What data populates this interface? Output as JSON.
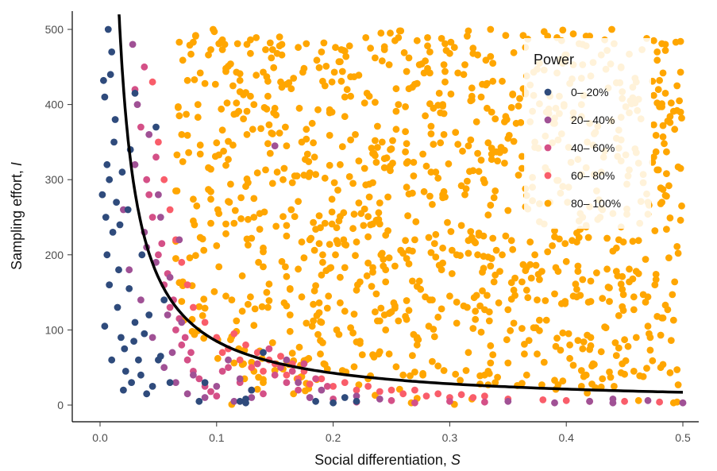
{
  "chart_data": {
    "type": "scatter",
    "xlabel": "Social differentiation, ",
    "xlabel_symbol": "S",
    "ylabel": "Sampling effort, ",
    "ylabel_symbol": "I",
    "xlim": [
      -0.025,
      0.51
    ],
    "ylim": [
      -25,
      525
    ],
    "x_ticks": [
      "0.0",
      "0.1",
      "0.2",
      "0.3",
      "0.4",
      "0.5"
    ],
    "y_ticks": [
      "0",
      "100",
      "200",
      "300",
      "400",
      "500"
    ],
    "grid": false,
    "legend": {
      "title": "Power",
      "position": "top-right",
      "entries": [
        "0– 20%",
        "20– 40%",
        "40– 60%",
        "60– 80%",
        "80– 100%"
      ]
    },
    "series": [
      {
        "name": "0– 20%",
        "color": "#2f4b7c",
        "points": [
          [
            0.003,
            432
          ],
          [
            0.005,
            250
          ],
          [
            0.008,
            300
          ],
          [
            0.006,
            200
          ],
          [
            0.01,
            60
          ],
          [
            0.015,
            130
          ],
          [
            0.02,
            20
          ],
          [
            0.004,
            410
          ],
          [
            0.012,
            350
          ],
          [
            0.007,
            500
          ],
          [
            0.018,
            90
          ],
          [
            0.022,
            45
          ],
          [
            0.03,
            110
          ],
          [
            0.009,
            440
          ],
          [
            0.014,
            270
          ],
          [
            0.025,
            155
          ],
          [
            0.006,
            320
          ],
          [
            0.011,
            230
          ],
          [
            0.016,
            180
          ],
          [
            0.021,
            75
          ],
          [
            0.027,
            30
          ],
          [
            0.033,
            60
          ],
          [
            0.04,
            15
          ],
          [
            0.048,
            370
          ],
          [
            0.055,
            140
          ],
          [
            0.06,
            30
          ],
          [
            0.004,
            105
          ],
          [
            0.013,
            380
          ],
          [
            0.019,
            310
          ],
          [
            0.024,
            260
          ],
          [
            0.03,
            415
          ],
          [
            0.036,
            200
          ],
          [
            0.042,
            120
          ],
          [
            0.05,
            60
          ],
          [
            0.008,
            160
          ],
          [
            0.017,
            240
          ],
          [
            0.029,
            85
          ],
          [
            0.035,
            40
          ],
          [
            0.045,
            25
          ],
          [
            0.002,
            280
          ],
          [
            0.01,
            470
          ],
          [
            0.026,
            340
          ],
          [
            0.038,
            95
          ],
          [
            0.052,
            65
          ],
          [
            0.085,
            5
          ],
          [
            0.09,
            30
          ],
          [
            0.12,
            5
          ],
          [
            0.125,
            8
          ],
          [
            0.13,
            20
          ],
          [
            0.14,
            70
          ],
          [
            0.185,
            5
          ],
          [
            0.2,
            3
          ],
          [
            0.21,
            10
          ],
          [
            0.22,
            5
          ],
          [
            0.125,
            3
          ]
        ]
      },
      {
        "name": "20– 40%",
        "color": "#a05195",
        "points": [
          [
            0.02,
            260
          ],
          [
            0.025,
            180
          ],
          [
            0.03,
            320
          ],
          [
            0.035,
            140
          ],
          [
            0.04,
            210
          ],
          [
            0.045,
            90
          ],
          [
            0.05,
            280
          ],
          [
            0.055,
            50
          ],
          [
            0.06,
            170
          ],
          [
            0.065,
            30
          ],
          [
            0.07,
            110
          ],
          [
            0.075,
            15
          ],
          [
            0.028,
            480
          ],
          [
            0.032,
            400
          ],
          [
            0.038,
            230
          ],
          [
            0.042,
            360
          ],
          [
            0.048,
            190
          ],
          [
            0.052,
            250
          ],
          [
            0.058,
            120
          ],
          [
            0.062,
            70
          ],
          [
            0.068,
            220
          ],
          [
            0.08,
            40
          ],
          [
            0.09,
            10
          ],
          [
            0.1,
            25
          ],
          [
            0.11,
            60
          ],
          [
            0.115,
            5
          ],
          [
            0.12,
            35
          ],
          [
            0.13,
            10
          ],
          [
            0.15,
            345
          ],
          [
            0.16,
            60
          ],
          [
            0.17,
            30
          ],
          [
            0.18,
            10
          ],
          [
            0.19,
            20
          ],
          [
            0.22,
            12
          ],
          [
            0.24,
            8
          ],
          [
            0.35,
            5
          ],
          [
            0.39,
            3
          ],
          [
            0.42,
            5
          ],
          [
            0.44,
            3
          ],
          [
            0.47,
            6
          ],
          [
            0.5,
            3
          ],
          [
            0.44,
            8
          ]
        ]
      },
      {
        "name": "40– 60%",
        "color": "#d45087",
        "points": [
          [
            0.03,
            420
          ],
          [
            0.035,
            370
          ],
          [
            0.04,
            300
          ],
          [
            0.045,
            250
          ],
          [
            0.05,
            200
          ],
          [
            0.055,
            160
          ],
          [
            0.06,
            130
          ],
          [
            0.065,
            100
          ],
          [
            0.07,
            80
          ],
          [
            0.075,
            60
          ],
          [
            0.08,
            45
          ],
          [
            0.085,
            35
          ],
          [
            0.09,
            25
          ],
          [
            0.095,
            18
          ],
          [
            0.1,
            12
          ],
          [
            0.11,
            50
          ],
          [
            0.12,
            30
          ],
          [
            0.13,
            20
          ],
          [
            0.14,
            15
          ],
          [
            0.15,
            40
          ],
          [
            0.16,
            30
          ],
          [
            0.17,
            20
          ],
          [
            0.18,
            10
          ],
          [
            0.2,
            8
          ],
          [
            0.22,
            4
          ],
          [
            0.25,
            6
          ],
          [
            0.27,
            3
          ],
          [
            0.3,
            5
          ],
          [
            0.33,
            4
          ],
          [
            0.038,
            450
          ],
          [
            0.042,
            280
          ],
          [
            0.048,
            330
          ],
          [
            0.053,
            215
          ],
          [
            0.058,
            175
          ],
          [
            0.063,
            140
          ],
          [
            0.068,
            115
          ],
          [
            0.073,
            90
          ],
          [
            0.078,
            70
          ],
          [
            0.105,
            45
          ],
          [
            0.135,
            55
          ],
          [
            0.145,
            75
          ],
          [
            0.155,
            50
          ],
          [
            0.165,
            45
          ],
          [
            0.175,
            55
          ],
          [
            0.185,
            35
          ],
          [
            0.195,
            25
          ]
        ]
      },
      {
        "name": "60– 80%",
        "color": "#f95d6a",
        "points": [
          [
            0.045,
            430
          ],
          [
            0.05,
            350
          ],
          [
            0.055,
            300
          ],
          [
            0.06,
            260
          ],
          [
            0.065,
            220
          ],
          [
            0.07,
            190
          ],
          [
            0.075,
            160
          ],
          [
            0.08,
            130
          ],
          [
            0.09,
            110
          ],
          [
            0.1,
            90
          ],
          [
            0.11,
            75
          ],
          [
            0.12,
            60
          ],
          [
            0.13,
            50
          ],
          [
            0.14,
            45
          ],
          [
            0.15,
            55
          ],
          [
            0.16,
            40
          ],
          [
            0.17,
            35
          ],
          [
            0.18,
            28
          ],
          [
            0.2,
            25
          ],
          [
            0.22,
            20
          ],
          [
            0.24,
            18
          ],
          [
            0.26,
            15
          ],
          [
            0.28,
            12
          ],
          [
            0.3,
            10
          ],
          [
            0.32,
            10
          ],
          [
            0.35,
            8
          ],
          [
            0.38,
            7
          ],
          [
            0.4,
            6
          ],
          [
            0.42,
            5
          ],
          [
            0.45,
            5
          ],
          [
            0.48,
            4
          ],
          [
            0.105,
            70
          ],
          [
            0.115,
            95
          ],
          [
            0.125,
            80
          ],
          [
            0.135,
            70
          ],
          [
            0.145,
            60
          ],
          [
            0.155,
            65
          ],
          [
            0.165,
            55
          ],
          [
            0.175,
            45
          ],
          [
            0.19,
            35
          ],
          [
            0.21,
            30
          ],
          [
            0.23,
            25
          ],
          [
            0.25,
            20
          ],
          [
            0.27,
            20
          ],
          [
            0.29,
            15
          ],
          [
            0.31,
            14
          ],
          [
            0.33,
            12
          ]
        ]
      },
      {
        "name": "80– 100%",
        "color": "#ffa600",
        "points": []
      }
    ],
    "curve": {
      "color": "#000000",
      "k": 8.5,
      "description": "I = k / S"
    }
  }
}
